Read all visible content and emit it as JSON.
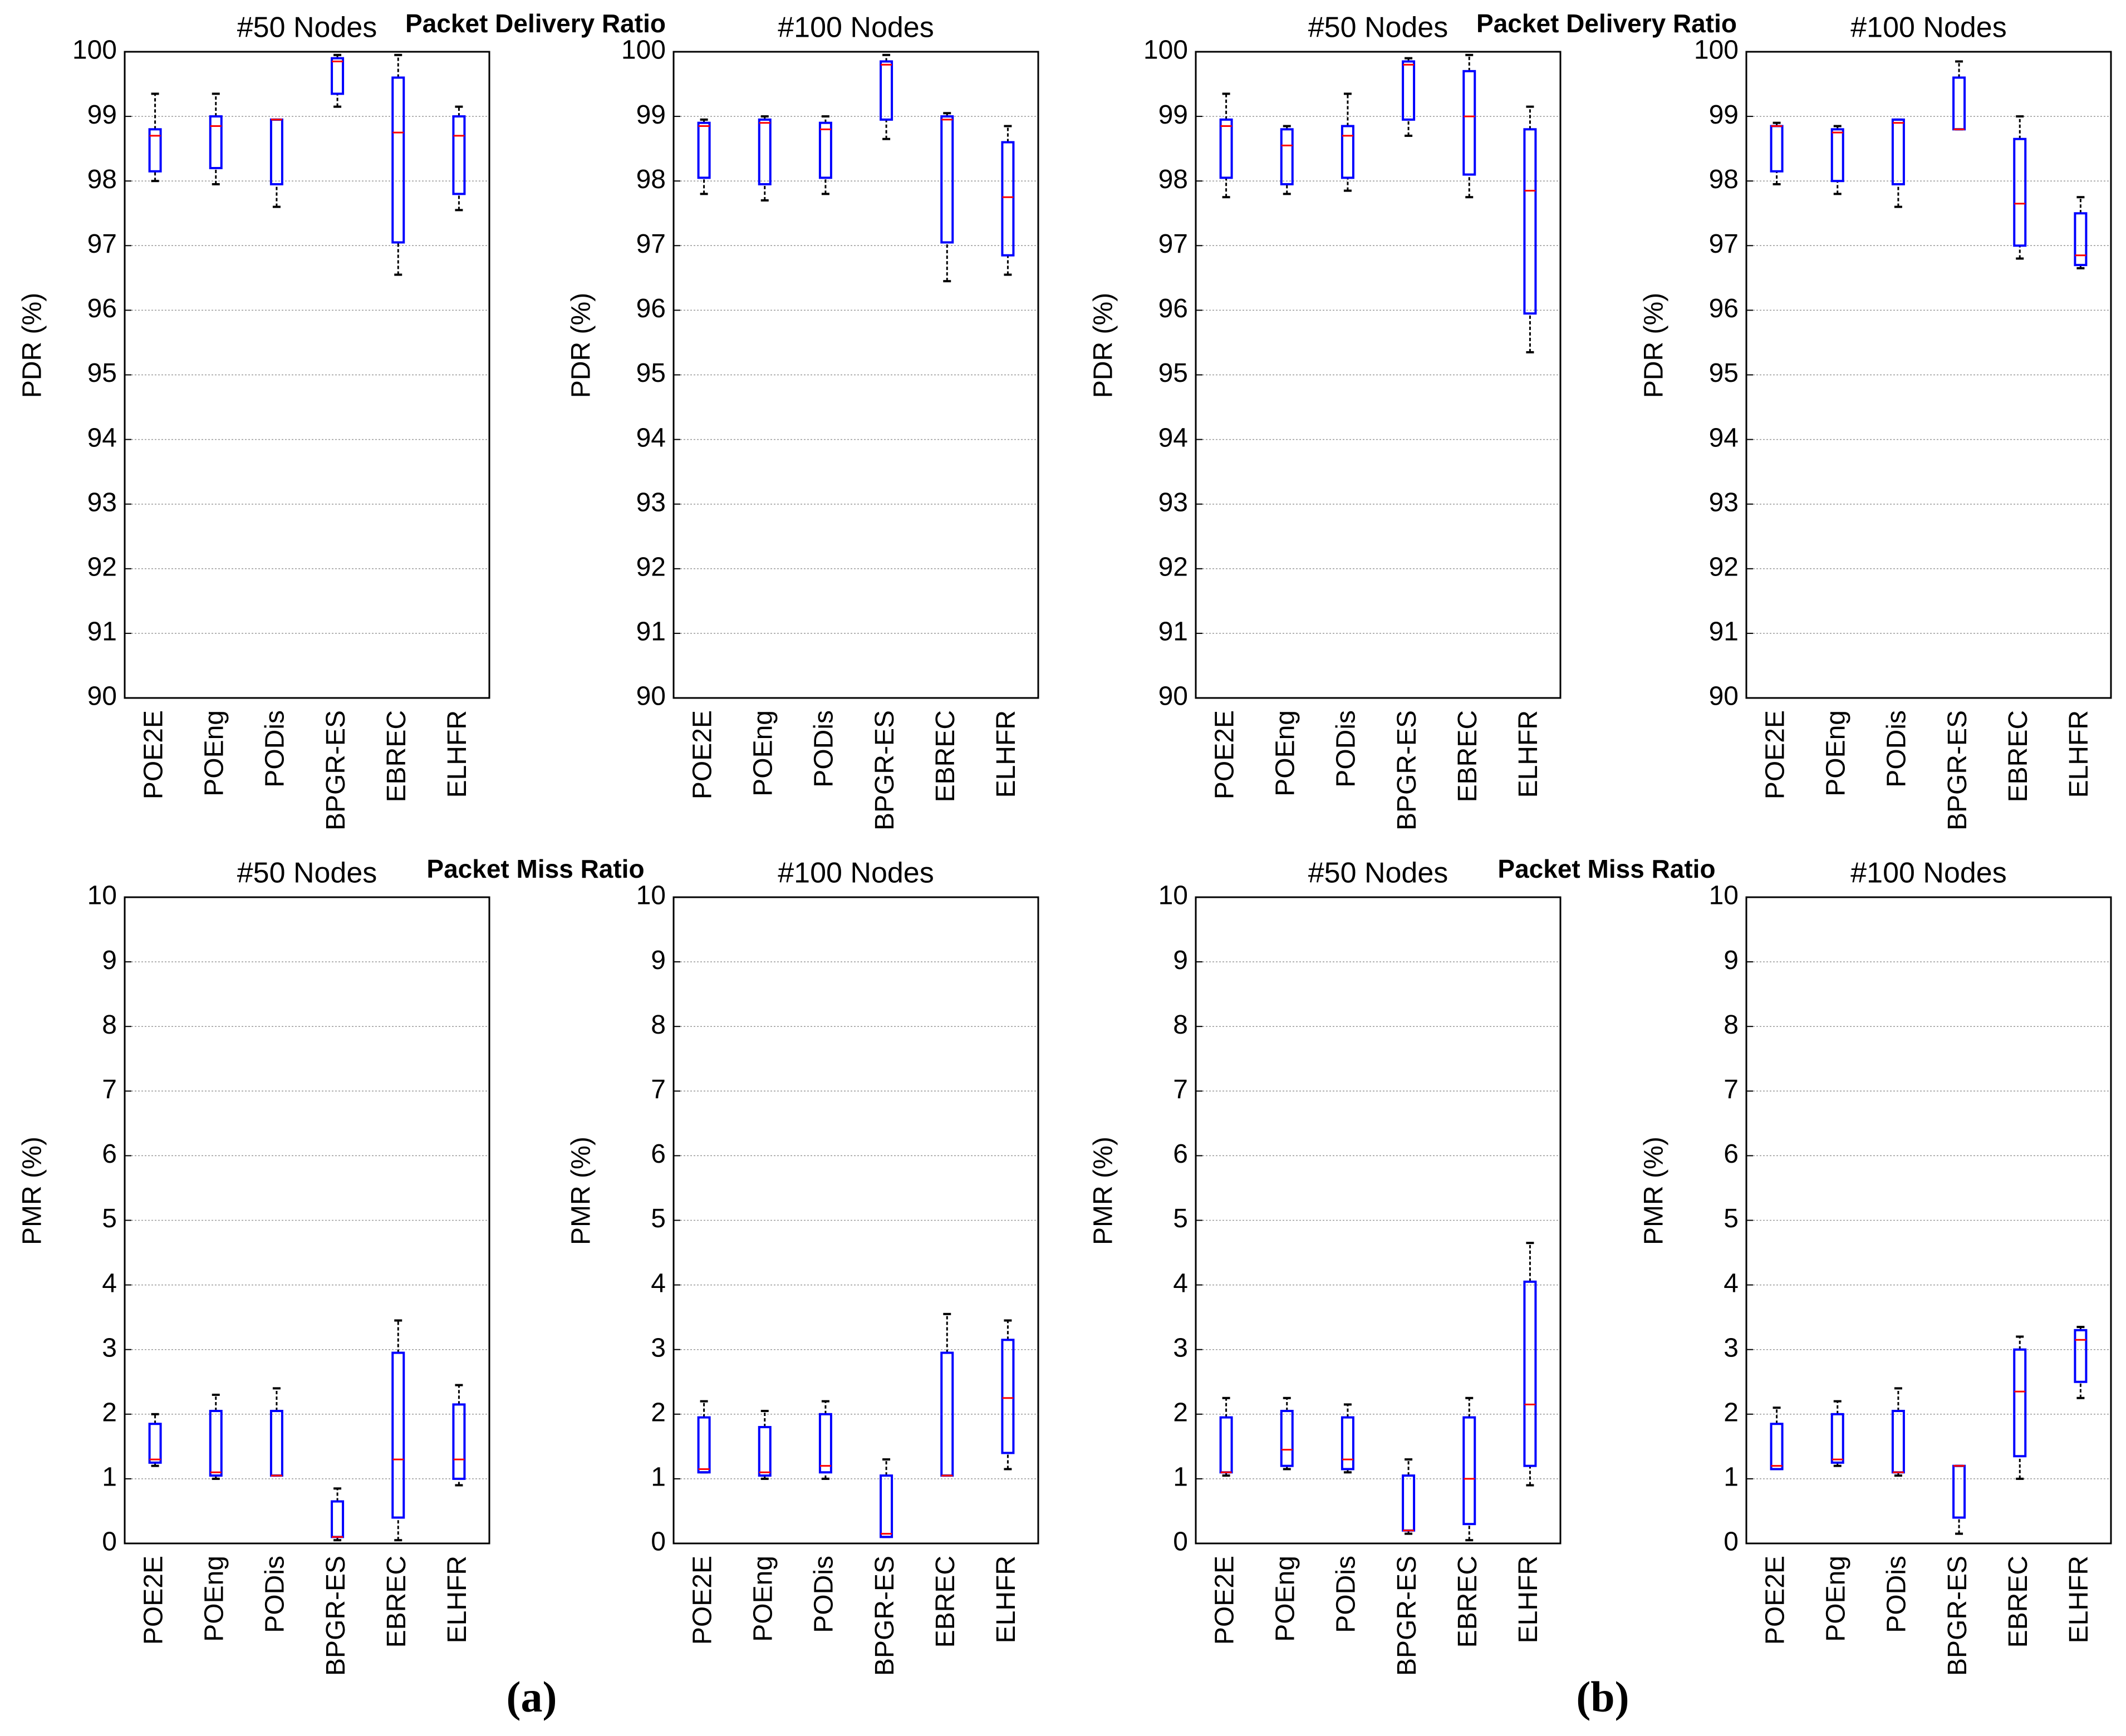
{
  "chart_data": [
    {
      "type": "box",
      "suptitle": "Packet Delivery Ratio",
      "title": "#50 Nodes",
      "ylabel": "PDR (%)",
      "ylim": [
        90,
        100
      ],
      "yticks": [
        90,
        91,
        92,
        93,
        94,
        95,
        96,
        97,
        98,
        99,
        100
      ],
      "grid": true,
      "box_color": "#0000ff",
      "median_color": "#ff0000",
      "whisker_color": "#000000",
      "categories": [
        "POE2E",
        "POEng",
        "PODis",
        "BPGR-ES",
        "EBREC",
        "ELHFR"
      ],
      "boxes": [
        [
          98.0,
          98.15,
          98.7,
          98.8,
          99.35
        ],
        [
          97.95,
          98.2,
          98.85,
          99.0,
          99.35
        ],
        [
          97.6,
          97.95,
          98.95,
          98.95,
          98.95
        ],
        [
          99.15,
          99.35,
          99.85,
          99.9,
          99.95
        ],
        [
          96.55,
          97.05,
          98.75,
          99.6,
          99.95
        ],
        [
          97.55,
          97.8,
          98.7,
          99.0,
          99.15
        ]
      ]
    },
    {
      "type": "box",
      "title": "#100 Nodes",
      "ylabel": "PDR (%)",
      "ylim": [
        90,
        100
      ],
      "yticks": [
        90,
        91,
        92,
        93,
        94,
        95,
        96,
        97,
        98,
        99,
        100
      ],
      "grid": true,
      "box_color": "#0000ff",
      "median_color": "#ff0000",
      "whisker_color": "#000000",
      "categories": [
        "POE2E",
        "POEng",
        "PODis",
        "BPGR-ES",
        "EBREC",
        "ELHFR"
      ],
      "boxes": [
        [
          97.8,
          98.05,
          98.85,
          98.9,
          98.95
        ],
        [
          97.7,
          97.95,
          98.9,
          98.95,
          99.0
        ],
        [
          97.8,
          98.05,
          98.8,
          98.9,
          99.0
        ],
        [
          98.65,
          98.95,
          99.8,
          99.85,
          99.95
        ],
        [
          96.45,
          97.05,
          98.95,
          99.0,
          99.05
        ],
        [
          96.55,
          96.85,
          97.75,
          98.6,
          98.85
        ]
      ]
    },
    {
      "type": "box",
      "suptitle": "Packet Delivery Ratio",
      "title": "#50 Nodes",
      "ylabel": "PDR (%)",
      "ylim": [
        90,
        100
      ],
      "yticks": [
        90,
        91,
        92,
        93,
        94,
        95,
        96,
        97,
        98,
        99,
        100
      ],
      "grid": true,
      "box_color": "#0000ff",
      "median_color": "#ff0000",
      "whisker_color": "#000000",
      "categories": [
        "POE2E",
        "POEng",
        "PODis",
        "BPGR-ES",
        "EBREC",
        "ELHFR"
      ],
      "boxes": [
        [
          97.75,
          98.05,
          98.85,
          98.95,
          99.35
        ],
        [
          97.8,
          97.95,
          98.55,
          98.8,
          98.85
        ],
        [
          97.85,
          98.05,
          98.7,
          98.85,
          99.35
        ],
        [
          98.7,
          98.95,
          99.8,
          99.85,
          99.9
        ],
        [
          97.75,
          98.1,
          99.0,
          99.7,
          99.95
        ],
        [
          95.35,
          95.95,
          97.85,
          98.8,
          99.15
        ]
      ]
    },
    {
      "type": "box",
      "title": "#100 Nodes",
      "ylabel": "PDR (%)",
      "ylim": [
        90,
        100
      ],
      "yticks": [
        90,
        91,
        92,
        93,
        94,
        95,
        96,
        97,
        98,
        99,
        100
      ],
      "grid": true,
      "box_color": "#0000ff",
      "median_color": "#ff0000",
      "whisker_color": "#000000",
      "categories": [
        "POE2E",
        "POEng",
        "PODis",
        "BPGR-ES",
        "EBREC",
        "ELHFR"
      ],
      "boxes": [
        [
          97.95,
          98.15,
          98.85,
          98.85,
          98.9
        ],
        [
          97.8,
          98.0,
          98.75,
          98.8,
          98.85
        ],
        [
          97.6,
          97.95,
          98.9,
          98.95,
          98.95
        ],
        [
          98.8,
          98.8,
          98.8,
          99.6,
          99.85
        ],
        [
          96.8,
          97.0,
          97.65,
          98.65,
          99.0
        ],
        [
          96.65,
          96.7,
          96.85,
          97.5,
          97.75
        ]
      ]
    },
    {
      "type": "box",
      "suptitle": "Packet Miss Ratio",
      "title": "#50 Nodes",
      "ylabel": "PMR (%)",
      "ylim": [
        0,
        10
      ],
      "yticks": [
        0,
        1,
        2,
        3,
        4,
        5,
        6,
        7,
        8,
        9,
        10
      ],
      "grid": true,
      "box_color": "#0000ff",
      "median_color": "#ff0000",
      "whisker_color": "#000000",
      "categories": [
        "POE2E",
        "POEng",
        "PODis",
        "BPGR-ES",
        "EBREC",
        "ELHFR"
      ],
      "boxes": [
        [
          1.2,
          1.25,
          1.3,
          1.85,
          2.0
        ],
        [
          1.0,
          1.05,
          1.1,
          2.05,
          2.3
        ],
        [
          1.05,
          1.05,
          1.05,
          2.05,
          2.4
        ],
        [
          0.05,
          0.1,
          0.1,
          0.65,
          0.85
        ],
        [
          0.05,
          0.4,
          1.3,
          2.95,
          3.45
        ],
        [
          0.9,
          1.0,
          1.3,
          2.15,
          2.45
        ]
      ]
    },
    {
      "type": "box",
      "title": "#100 Nodes",
      "ylabel": "PMR (%)",
      "ylim": [
        0,
        10
      ],
      "yticks": [
        0,
        1,
        2,
        3,
        4,
        5,
        6,
        7,
        8,
        9,
        10
      ],
      "grid": true,
      "box_color": "#0000ff",
      "median_color": "#ff0000",
      "whisker_color": "#000000",
      "categories": [
        "POE2E",
        "POEng",
        "PODis",
        "BPGR-ES",
        "EBREC",
        "ELHFR"
      ],
      "boxes": [
        [
          1.1,
          1.1,
          1.15,
          1.95,
          2.2
        ],
        [
          1.0,
          1.05,
          1.1,
          1.8,
          2.05
        ],
        [
          1.0,
          1.1,
          1.2,
          2.0,
          2.2
        ],
        [
          0.1,
          0.1,
          0.15,
          1.05,
          1.3
        ],
        [
          1.05,
          1.05,
          1.05,
          2.95,
          3.55
        ],
        [
          1.15,
          1.4,
          2.25,
          3.15,
          3.45
        ]
      ]
    },
    {
      "type": "box",
      "suptitle": "Packet Miss Ratio",
      "title": "#50 Nodes",
      "ylabel": "PMR (%)",
      "ylim": [
        0,
        10
      ],
      "yticks": [
        0,
        1,
        2,
        3,
        4,
        5,
        6,
        7,
        8,
        9,
        10
      ],
      "grid": true,
      "box_color": "#0000ff",
      "median_color": "#ff0000",
      "whisker_color": "#000000",
      "categories": [
        "POE2E",
        "POEng",
        "PODis",
        "BPGR-ES",
        "EBREC",
        "ELHFR"
      ],
      "boxes": [
        [
          1.05,
          1.1,
          1.1,
          1.95,
          2.25
        ],
        [
          1.15,
          1.2,
          1.45,
          2.05,
          2.25
        ],
        [
          1.1,
          1.15,
          1.3,
          1.95,
          2.15
        ],
        [
          0.15,
          0.2,
          0.2,
          1.05,
          1.3
        ],
        [
          0.05,
          0.3,
          1.0,
          1.95,
          2.25
        ],
        [
          0.9,
          1.2,
          2.15,
          4.05,
          4.65
        ]
      ]
    },
    {
      "type": "box",
      "title": "#100 Nodes",
      "ylabel": "PMR (%)",
      "ylim": [
        0,
        10
      ],
      "yticks": [
        0,
        1,
        2,
        3,
        4,
        5,
        6,
        7,
        8,
        9,
        10
      ],
      "grid": true,
      "box_color": "#0000ff",
      "median_color": "#ff0000",
      "whisker_color": "#000000",
      "categories": [
        "POE2E",
        "POEng",
        "PODis",
        "BPGR-ES",
        "EBREC",
        "ELHFR"
      ],
      "boxes": [
        [
          1.15,
          1.15,
          1.2,
          1.85,
          2.1
        ],
        [
          1.2,
          1.25,
          1.3,
          2.0,
          2.2
        ],
        [
          1.05,
          1.1,
          1.1,
          2.05,
          2.4
        ],
        [
          0.15,
          0.4,
          1.2,
          1.2,
          1.2
        ],
        [
          1.0,
          1.35,
          2.35,
          3.0,
          3.2
        ],
        [
          2.25,
          2.5,
          3.15,
          3.3,
          3.35
        ]
      ]
    }
  ],
  "panel_labels": [
    "(a)",
    "(b)"
  ]
}
